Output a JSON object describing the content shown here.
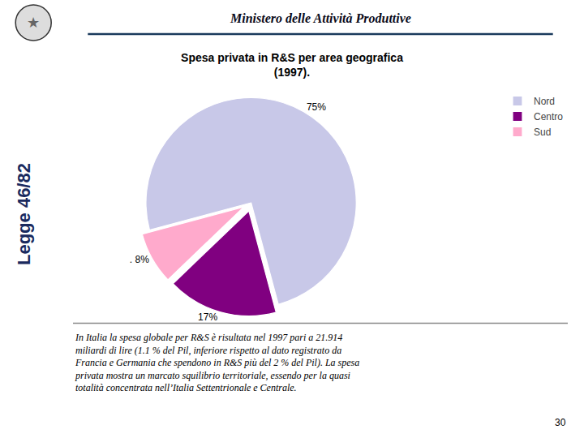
{
  "chart_data": {
    "type": "pie",
    "title": "Spesa privata in R&S per area geografica\n(1997).",
    "categories": [
      "Nord",
      "Centro",
      "Sud"
    ],
    "values": [
      75,
      17,
      8
    ],
    "value_labels": [
      "75%",
      "17%",
      ". 8%"
    ],
    "colors": [
      "#c8c8e8",
      "#800080",
      "#ffaacc"
    ],
    "data_labels": true,
    "legend": "upper right",
    "annotations": [
      "★",
      "Ministero delle Attività Produttive",
      "Legge 46/82",
      "In Italia la spesa globale per R&S è risultata nel 1997 pari a 21.914",
      "miliardi di lire (1.1 % del Pil, inferiore rispetto al dato registrato da",
      "Francia e Germania che spendono in R&S più del 2 % del Pil). La spesa",
      "privata mostra un marcato squilibrio territoriale, essendo per la quasi",
      "totalità concentrata nell’Italia Settentrionale e Centrale.",
      "30"
    ]
  }
}
